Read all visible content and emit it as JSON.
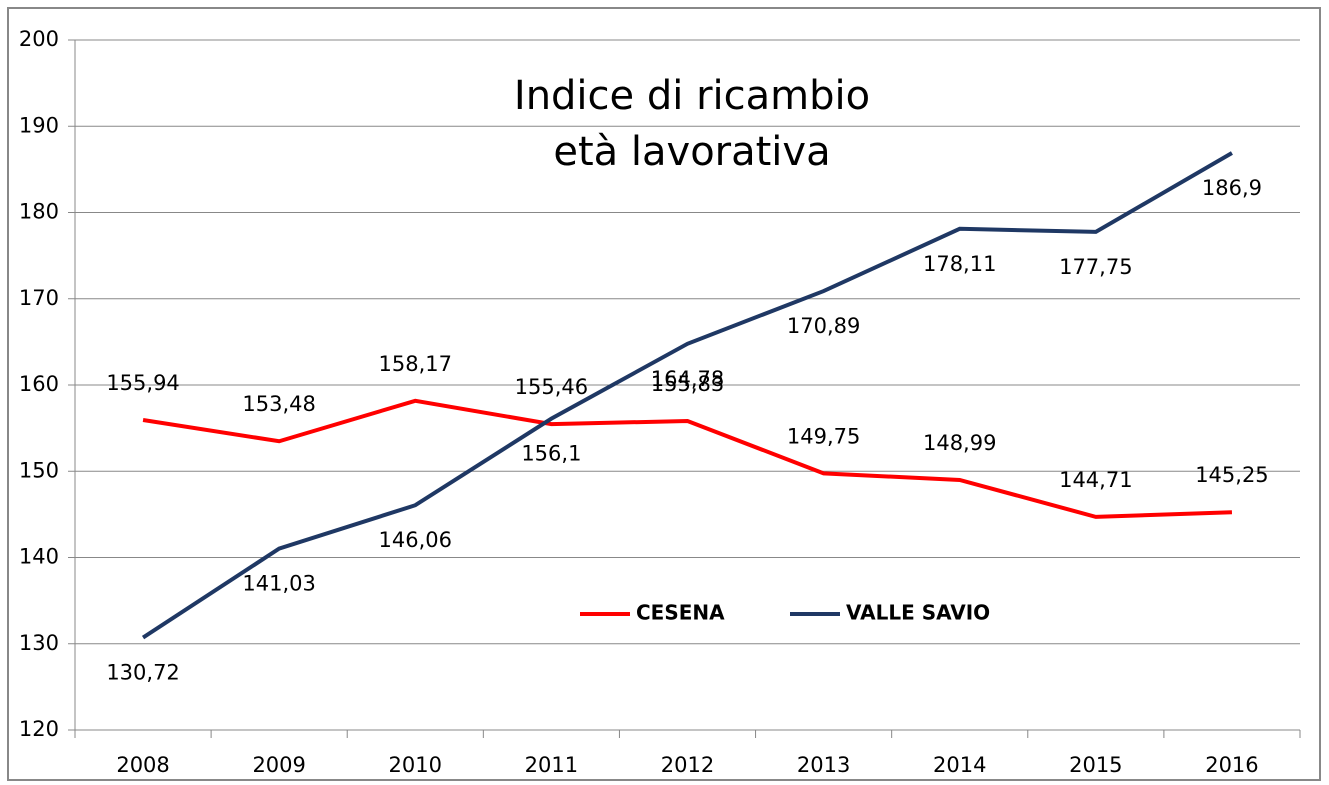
{
  "chart_data": {
    "type": "line",
    "title": [
      "Indice di ricambio",
      "età lavorativa"
    ],
    "categories": [
      "2008",
      "2009",
      "2010",
      "2011",
      "2012",
      "2013",
      "2014",
      "2015",
      "2016"
    ],
    "series": [
      {
        "name": "CESENA",
        "color": "#ff0000",
        "values": [
          155.94,
          153.48,
          158.17,
          155.46,
          155.83,
          149.75,
          148.99,
          144.71,
          145.25
        ],
        "value_labels": [
          "155,94",
          "153,48",
          "158,17",
          "155,46",
          "155,83",
          "149,75",
          "148,99",
          "144,71",
          "145,25"
        ]
      },
      {
        "name": "VALLE SAVIO",
        "color": "#1f3864",
        "values": [
          130.72,
          141.03,
          146.06,
          156.1,
          164.78,
          170.89,
          178.11,
          177.75,
          186.9
        ],
        "value_labels": [
          "130,72",
          "141,03",
          "146,06",
          "156,1",
          "164,78",
          "170,89",
          "178,11",
          "177,75",
          "186,9"
        ]
      }
    ],
    "ylim": [
      120,
      200
    ],
    "yticks": [
      120,
      130,
      140,
      150,
      160,
      170,
      180,
      190,
      200
    ],
    "grid": true,
    "legend": "center"
  }
}
